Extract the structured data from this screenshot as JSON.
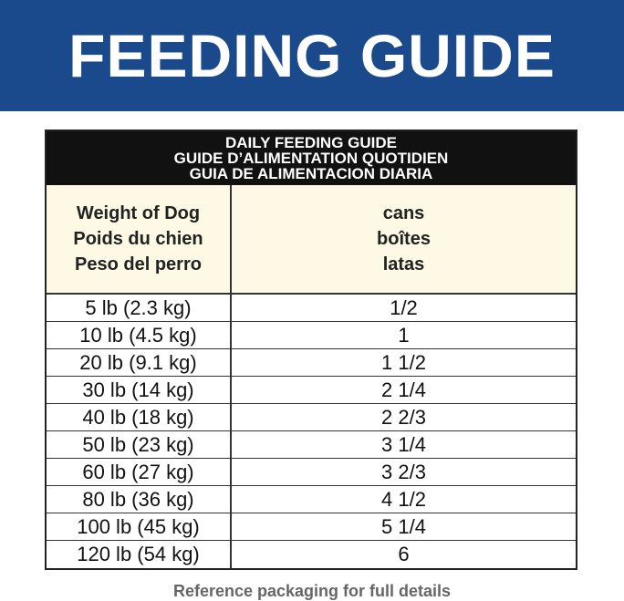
{
  "header": {
    "title": "FEEDING GUIDE"
  },
  "table": {
    "caption": [
      "DAILY FEEDING GUIDE",
      "GUIDE D’ALIMENTATION QUOTIDIEN",
      "GUIA DE ALIMENTACION DIARIA"
    ],
    "columns": [
      [
        "Weight of Dog",
        "Poids du chien",
        "Peso del perro"
      ],
      [
        "cans",
        "boîtes",
        "latas"
      ]
    ],
    "rows": [
      [
        "5 lb (2.3 kg)",
        "1/2"
      ],
      [
        "10 lb (4.5 kg)",
        "1"
      ],
      [
        "20 lb (9.1 kg)",
        "1 1/2"
      ],
      [
        "30 lb (14 kg)",
        "2 1/4"
      ],
      [
        "40 lb (18 kg)",
        "2 2/3"
      ],
      [
        "50 lb (23 kg)",
        "3 1/4"
      ],
      [
        "60 lb (27 kg)",
        "3 2/3"
      ],
      [
        "80 lb (36 kg)",
        "4 1/2"
      ],
      [
        "100 lb (45 kg)",
        "5 1/4"
      ],
      [
        "120 lb (54 kg)",
        "6"
      ]
    ]
  },
  "footer": {
    "note": "Reference packaging for full details"
  }
}
